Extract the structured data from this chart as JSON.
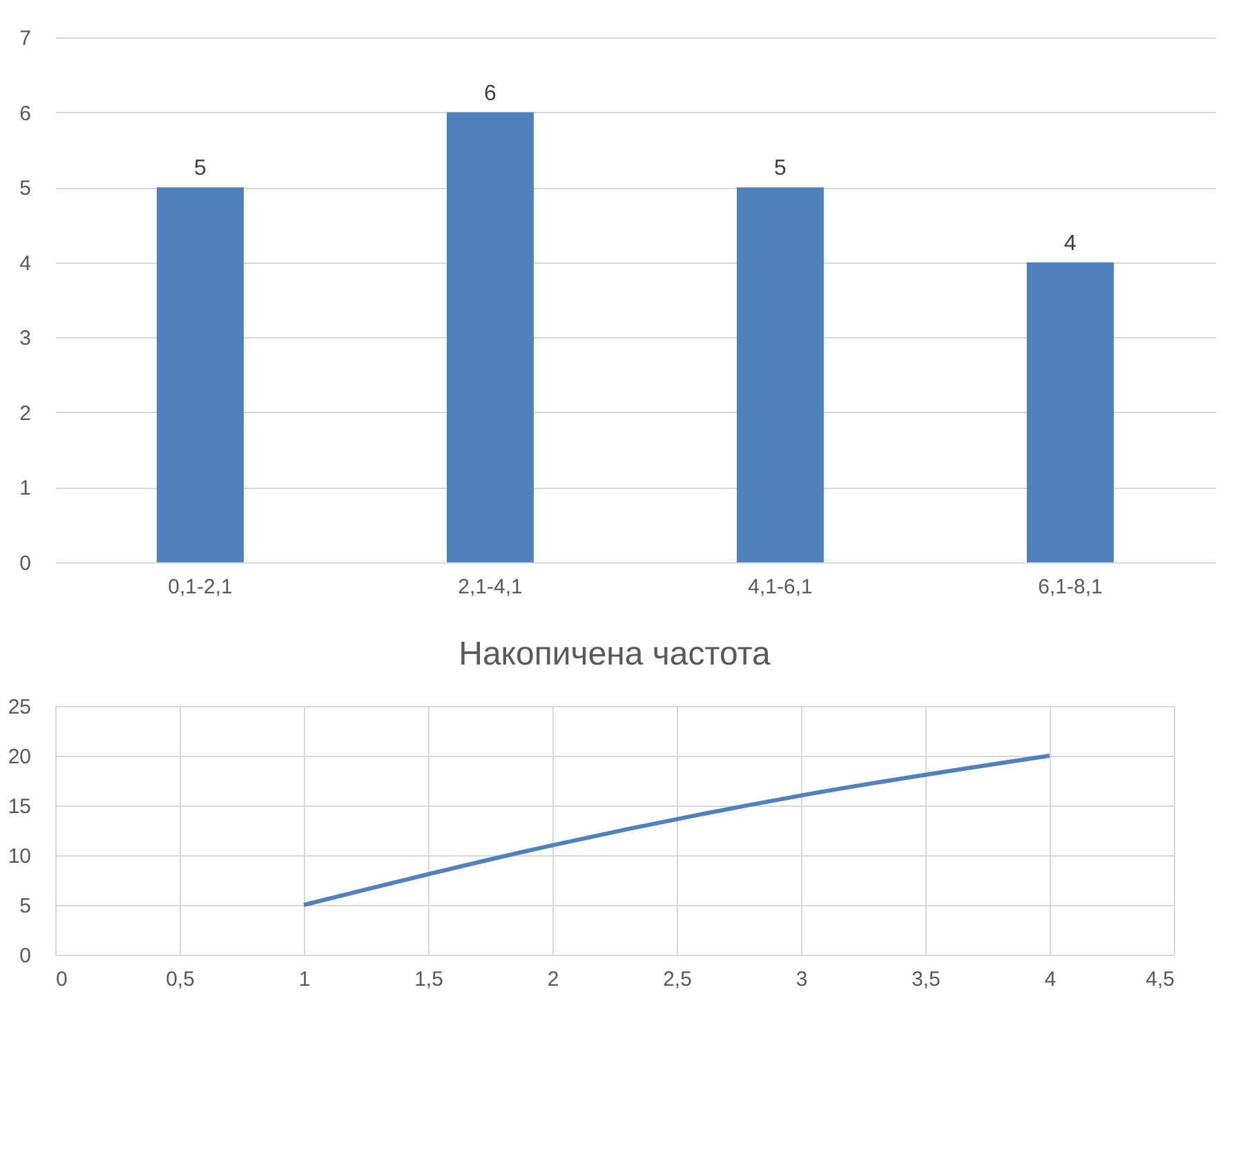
{
  "chart_data": [
    {
      "type": "bar",
      "categories": [
        "0,1-2,1",
        "2,1-4,1",
        "4,1-6,1",
        "6,1-8,1"
      ],
      "values": [
        5,
        6,
        5,
        4
      ],
      "color": "#4f81bd",
      "ylim": [
        0,
        7
      ],
      "yticks": [
        0,
        1,
        2,
        3,
        4,
        5,
        6,
        7
      ],
      "data_labels": true,
      "grid": "y"
    },
    {
      "type": "line",
      "title": "Накопичена частота",
      "x": [
        1,
        2,
        3,
        4
      ],
      "values": [
        5,
        11,
        16,
        20
      ],
      "color": "#4f81bd",
      "xlim": [
        0,
        4.5
      ],
      "xticks": [
        0,
        {
          "value": 0.5,
          "label": "0,5"
        },
        1,
        {
          "value": 1.5,
          "label": "1,5"
        },
        2,
        {
          "value": 2.5,
          "label": "2,5"
        },
        3,
        {
          "value": 3.5,
          "label": "3,5"
        },
        4,
        {
          "value": 4.5,
          "label": "4,5"
        }
      ],
      "ylim": [
        0,
        25
      ],
      "yticks": [
        0,
        5,
        10,
        15,
        20,
        25
      ],
      "grid": true,
      "marker": "none",
      "line_style": "solid"
    }
  ]
}
